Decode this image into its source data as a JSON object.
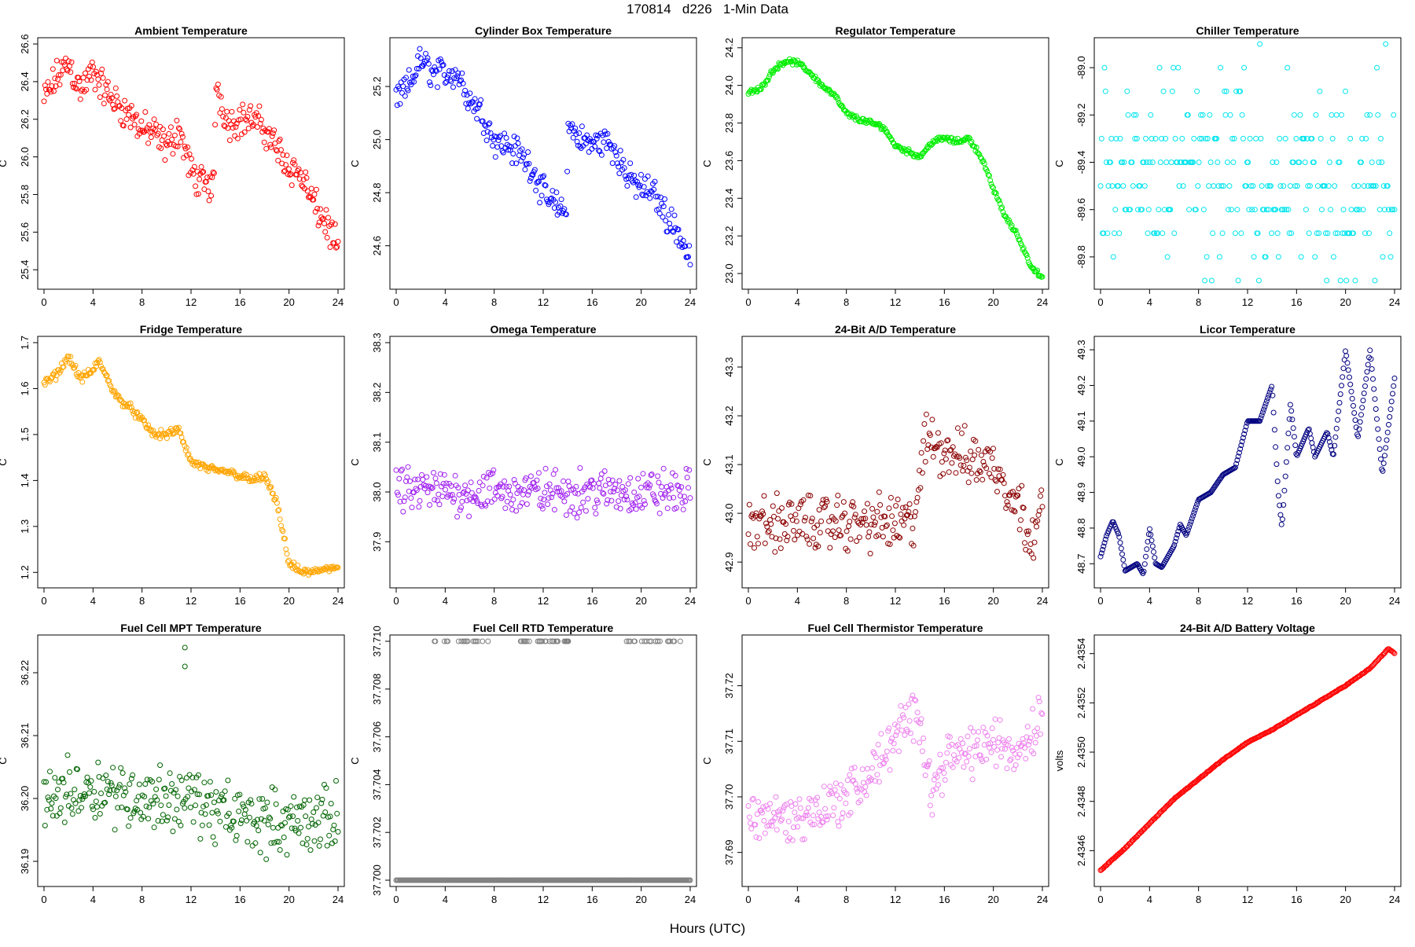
{
  "figure": {
    "title": "170814   d226   1-Min Data",
    "xlabel": "Hours (UTC)"
  },
  "chart_data": [
    {
      "type": "scatter",
      "title": "Ambient Temperature",
      "ylabel": "C",
      "color": "#ff0000",
      "xlim": [
        0,
        24
      ],
      "xticks": [
        0,
        4,
        8,
        12,
        16,
        20,
        24
      ],
      "ylim": [
        25.33,
        26.6
      ],
      "yticks": [
        25.4,
        25.6,
        25.8,
        26.0,
        26.2,
        26.4,
        26.6
      ],
      "ytick_labels": [
        "25.4",
        "25.6",
        "25.8",
        "26.0",
        "26.2",
        "26.4",
        "26.6"
      ],
      "points": [
        [
          0,
          26.3
        ],
        [
          1,
          26.42
        ],
        [
          2,
          26.5
        ],
        [
          3,
          26.35
        ],
        [
          4,
          26.45
        ],
        [
          5,
          26.35
        ],
        [
          6,
          26.28
        ],
        [
          7,
          26.22
        ],
        [
          8,
          26.15
        ],
        [
          9,
          26.12
        ],
        [
          10,
          26.05
        ],
        [
          11,
          26.15
        ],
        [
          12,
          25.92
        ],
        [
          13,
          25.85
        ],
        [
          13.9,
          25.85
        ],
        [
          14,
          26.4
        ],
        [
          15,
          26.18
        ],
        [
          16,
          26.2
        ],
        [
          17,
          26.2
        ],
        [
          18,
          26.15
        ],
        [
          19,
          26.05
        ],
        [
          20,
          25.95
        ],
        [
          21,
          25.9
        ],
        [
          22,
          25.75
        ],
        [
          23,
          25.65
        ],
        [
          24,
          25.5
        ]
      ],
      "noise": 0.08,
      "spread": "random"
    },
    {
      "type": "scatter",
      "title": "Cylinder Box Temperature",
      "ylabel": "C",
      "color": "#0000ff",
      "xlim": [
        0,
        24
      ],
      "xticks": [
        0,
        4,
        8,
        12,
        16,
        20,
        24
      ],
      "ylim": [
        24.46,
        25.36
      ],
      "yticks": [
        24.6,
        24.8,
        25.0,
        25.2
      ],
      "ytick_labels": [
        "24.6",
        "24.8",
        "25.0",
        "25.2"
      ],
      "points": [
        [
          0,
          25.15
        ],
        [
          1,
          25.2
        ],
        [
          2,
          25.3
        ],
        [
          3,
          25.25
        ],
        [
          4,
          25.25
        ],
        [
          5,
          25.25
        ],
        [
          6,
          25.15
        ],
        [
          7,
          25.1
        ],
        [
          8,
          25.0
        ],
        [
          9,
          24.98
        ],
        [
          10,
          24.95
        ],
        [
          11,
          24.9
        ],
        [
          12,
          24.8
        ],
        [
          13,
          24.75
        ],
        [
          13.9,
          24.72
        ],
        [
          14,
          25.05
        ],
        [
          15,
          25.0
        ],
        [
          16,
          24.98
        ],
        [
          17,
          25.0
        ],
        [
          18,
          24.95
        ],
        [
          19,
          24.85
        ],
        [
          20,
          24.82
        ],
        [
          21,
          24.8
        ],
        [
          22,
          24.72
        ],
        [
          23,
          24.65
        ],
        [
          24,
          24.55
        ]
      ],
      "noise": 0.05,
      "spread": "random"
    },
    {
      "type": "scatter",
      "title": "Regulator Temperature",
      "ylabel": "C",
      "color": "#00ee00",
      "xlim": [
        0,
        24
      ],
      "xticks": [
        0,
        4,
        8,
        12,
        16,
        20,
        24
      ],
      "ylim": [
        22.95,
        24.22
      ],
      "yticks": [
        23.0,
        23.2,
        23.4,
        23.6,
        23.8,
        24.0,
        24.2
      ],
      "ytick_labels": [
        "23.0",
        "23.2",
        "23.4",
        "23.6",
        "23.8",
        "24.0",
        "24.2"
      ],
      "points": [
        [
          0,
          23.96
        ],
        [
          1,
          23.98
        ],
        [
          2,
          24.08
        ],
        [
          3,
          24.13
        ],
        [
          4,
          24.12
        ],
        [
          5,
          24.07
        ],
        [
          6,
          24.0
        ],
        [
          7,
          23.95
        ],
        [
          8,
          23.85
        ],
        [
          9,
          23.82
        ],
        [
          10,
          23.8
        ],
        [
          11,
          23.78
        ],
        [
          12,
          23.68
        ],
        [
          13,
          23.65
        ],
        [
          14,
          23.62
        ],
        [
          15,
          23.7
        ],
        [
          16,
          23.72
        ],
        [
          17,
          23.7
        ],
        [
          18,
          23.72
        ],
        [
          19,
          23.62
        ],
        [
          20,
          23.45
        ],
        [
          21,
          23.3
        ],
        [
          22,
          23.2
        ],
        [
          23,
          23.05
        ],
        [
          24,
          22.97
        ]
      ],
      "noise": 0.012,
      "spread": "random"
    },
    {
      "type": "scatter",
      "title": "Chiller Temperature",
      "ylabel": "C",
      "color": "#00e5ee",
      "xlim": [
        0,
        24
      ],
      "xticks": [
        0,
        4,
        8,
        12,
        16,
        20,
        24
      ],
      "ylim": [
        -89.91,
        -88.9
      ],
      "yticks": [
        -89.8,
        -89.6,
        -89.4,
        -89.2,
        -89.0
      ],
      "ytick_labels": [
        "-89.8",
        "-89.6",
        "-89.4",
        "-89.2",
        "-89.0"
      ],
      "levels": [
        -88.9,
        -89.0,
        -89.1,
        -89.2,
        -89.3,
        -89.4,
        -89.5,
        -89.6,
        -89.7,
        -89.8,
        -89.9
      ],
      "spread": "quantized"
    },
    {
      "type": "scatter",
      "title": "Fridge Temperature",
      "ylabel": "C",
      "color": "#ffa500",
      "xlim": [
        0,
        24
      ],
      "xticks": [
        0,
        4,
        8,
        12,
        16,
        20,
        24
      ],
      "ylim": [
        1.18,
        1.7
      ],
      "yticks": [
        1.2,
        1.3,
        1.4,
        1.5,
        1.6,
        1.7
      ],
      "ytick_labels": [
        "1.2",
        "1.3",
        "1.4",
        "1.5",
        "1.6",
        "1.7"
      ],
      "points": [
        [
          0,
          1.61
        ],
        [
          1,
          1.63
        ],
        [
          2,
          1.67
        ],
        [
          3,
          1.62
        ],
        [
          4,
          1.64
        ],
        [
          4.5,
          1.66
        ],
        [
          5,
          1.63
        ],
        [
          6,
          1.58
        ],
        [
          7,
          1.56
        ],
        [
          8,
          1.53
        ],
        [
          9,
          1.5
        ],
        [
          10,
          1.5
        ],
        [
          11,
          1.51
        ],
        [
          12,
          1.44
        ],
        [
          13,
          1.43
        ],
        [
          14,
          1.42
        ],
        [
          15,
          1.42
        ],
        [
          16,
          1.41
        ],
        [
          17,
          1.4
        ],
        [
          18,
          1.41
        ],
        [
          19,
          1.35
        ],
        [
          20,
          1.22
        ],
        [
          21,
          1.2
        ],
        [
          22,
          1.2
        ],
        [
          23,
          1.21
        ],
        [
          24,
          1.21
        ]
      ],
      "noise": 0.008,
      "spread": "random"
    },
    {
      "type": "scatter",
      "title": "Omega Temperature",
      "ylabel": "C",
      "color": "#a020f0",
      "xlim": [
        0,
        24
      ],
      "xticks": [
        0,
        4,
        8,
        12,
        16,
        20,
        24
      ],
      "ylim": [
        37.82,
        38.3
      ],
      "yticks": [
        37.9,
        38.0,
        38.1,
        38.2,
        38.3
      ],
      "ytick_labels": [
        "37.9",
        "38.0",
        "38.1",
        "38.2",
        "38.3"
      ],
      "points": [
        [
          0,
          38.0
        ],
        [
          14,
          38.0
        ],
        [
          24,
          38.0
        ]
      ],
      "noise": 0.04,
      "spread": "random"
    },
    {
      "type": "scatter",
      "title": "24-Bit A/D Temperature",
      "ylabel": "C",
      "color": "#8b0000",
      "xlim": [
        0,
        24
      ],
      "xticks": [
        0,
        4,
        8,
        12,
        16,
        20,
        24
      ],
      "ylim": [
        42.86,
        43.35
      ],
      "yticks": [
        42.9,
        43.0,
        43.1,
        43.2,
        43.3
      ],
      "ytick_labels": [
        "42.9",
        "43.0",
        "43.1",
        "43.2",
        "43.3"
      ],
      "points": [
        [
          0,
          42.98
        ],
        [
          13.5,
          42.98
        ],
        [
          14.5,
          43.15
        ],
        [
          17,
          43.12
        ],
        [
          20,
          43.1
        ],
        [
          22,
          43.02
        ],
        [
          23,
          42.96
        ],
        [
          24,
          43.0
        ]
      ],
      "noise": 0.05,
      "spread": "random"
    },
    {
      "type": "scatter",
      "title": "Licor Temperature",
      "ylabel": "C",
      "color": "#000080",
      "xlim": [
        0,
        24
      ],
      "xticks": [
        0,
        4,
        8,
        12,
        16,
        20,
        24
      ],
      "ylim": [
        48.65,
        49.32
      ],
      "yticks": [
        48.7,
        48.8,
        48.9,
        49.0,
        49.1,
        49.2,
        49.3
      ],
      "ytick_labels": [
        "48.7",
        "48.8",
        "48.9",
        "49.0",
        "49.1",
        "49.2",
        "49.3"
      ],
      "points": [
        [
          0,
          48.72
        ],
        [
          0.5,
          48.78
        ],
        [
          1,
          48.82
        ],
        [
          1.5,
          48.78
        ],
        [
          2,
          48.68
        ],
        [
          3,
          48.7
        ],
        [
          3.5,
          48.67
        ],
        [
          4,
          48.8
        ],
        [
          4.5,
          48.7
        ],
        [
          5,
          48.69
        ],
        [
          6,
          48.75
        ],
        [
          6.5,
          48.81
        ],
        [
          7,
          48.78
        ],
        [
          8,
          48.88
        ],
        [
          9,
          48.9
        ],
        [
          10,
          48.95
        ],
        [
          11,
          48.97
        ],
        [
          12,
          49.1
        ],
        [
          13,
          49.1
        ],
        [
          14,
          49.2
        ],
        [
          14.5,
          48.9
        ],
        [
          14.8,
          48.8
        ],
        [
          15.5,
          49.15
        ],
        [
          16,
          49.0
        ],
        [
          17,
          49.08
        ],
        [
          17.5,
          49.0
        ],
        [
          18.5,
          49.07
        ],
        [
          19,
          49.0
        ],
        [
          20,
          49.3
        ],
        [
          21,
          49.05
        ],
        [
          22,
          49.3
        ],
        [
          23,
          48.95
        ],
        [
          24,
          49.22
        ]
      ],
      "noise": 0.0,
      "spread": "line"
    },
    {
      "type": "scatter",
      "title": "Fuel Cell MPT Temperature",
      "ylabel": "C",
      "color": "#006400",
      "xlim": [
        0,
        24
      ],
      "xticks": [
        0,
        4,
        8,
        12,
        16,
        20,
        24
      ],
      "ylim": [
        36.187,
        36.225
      ],
      "yticks": [
        36.19,
        36.2,
        36.21,
        36.22
      ],
      "ytick_labels": [
        "36.19",
        "36.20",
        "36.21",
        "36.22"
      ],
      "points": [
        [
          0,
          36.2
        ],
        [
          4,
          36.202
        ],
        [
          8,
          36.2
        ],
        [
          12,
          36.2
        ],
        [
          14,
          36.198
        ],
        [
          16,
          36.197
        ],
        [
          20,
          36.196
        ],
        [
          24,
          36.197
        ]
      ],
      "noise": 0.0045,
      "spread": "random",
      "outliers": [
        [
          11.5,
          36.224
        ],
        [
          11.5,
          36.221
        ]
      ]
    },
    {
      "type": "scatter",
      "title": "Fuel Cell RTD Temperature",
      "ylabel": "C",
      "color": "#808080",
      "xlim": [
        0,
        24
      ],
      "xticks": [
        0,
        4,
        8,
        12,
        16,
        20,
        24
      ],
      "ylim": [
        37.7,
        37.71
      ],
      "yticks": [
        37.7,
        37.702,
        37.704,
        37.706,
        37.708,
        37.71
      ],
      "ytick_labels": [
        "37.700",
        "37.702",
        "37.704",
        "37.706",
        "37.708",
        "37.710"
      ],
      "levels": [
        37.7,
        37.71
      ],
      "spread": "two-level"
    },
    {
      "type": "scatter",
      "title": "Fuel Cell Thermistor Temperature",
      "ylabel": "C",
      "color": "#ee82ee",
      "xlim": [
        0,
        24
      ],
      "xticks": [
        0,
        4,
        8,
        12,
        16,
        20,
        24
      ],
      "ylim": [
        37.685,
        37.728
      ],
      "yticks": [
        37.69,
        37.7,
        37.71,
        37.72
      ],
      "ytick_labels": [
        "37.69",
        "37.70",
        "37.71",
        "37.72"
      ],
      "points": [
        [
          0,
          37.697
        ],
        [
          4,
          37.696
        ],
        [
          8,
          37.7
        ],
        [
          10,
          37.704
        ],
        [
          12,
          37.711
        ],
        [
          14,
          37.715
        ],
        [
          15,
          37.7
        ],
        [
          16,
          37.707
        ],
        [
          18,
          37.708
        ],
        [
          20,
          37.71
        ],
        [
          22,
          37.708
        ],
        [
          24,
          37.715
        ]
      ],
      "noise": 0.004,
      "spread": "random"
    },
    {
      "type": "scatter",
      "title": "24-Bit A/D Battery Voltage",
      "ylabel": "volts",
      "color": "#ff0000",
      "xlim": [
        0,
        24
      ],
      "xticks": [
        0,
        4,
        8,
        12,
        16,
        20,
        24
      ],
      "ylim": [
        2.43448,
        2.43545
      ],
      "yticks": [
        2.4346,
        2.4348,
        2.435,
        2.4352,
        2.4354
      ],
      "ytick_labels": [
        "2.4346",
        "2.4348",
        "2.4350",
        "2.4352",
        "2.4354"
      ],
      "points": [
        [
          0,
          2.43452
        ],
        [
          2,
          2.43461
        ],
        [
          4,
          2.43471
        ],
        [
          6,
          2.43481
        ],
        [
          8,
          2.43489
        ],
        [
          10,
          2.43497
        ],
        [
          12,
          2.43504
        ],
        [
          14,
          2.43509
        ],
        [
          16,
          2.43515
        ],
        [
          18,
          2.43521
        ],
        [
          20,
          2.43527
        ],
        [
          22,
          2.43534
        ],
        [
          23.5,
          2.43542
        ],
        [
          24,
          2.4354
        ]
      ],
      "noise": 3e-06,
      "spread": "line"
    }
  ]
}
